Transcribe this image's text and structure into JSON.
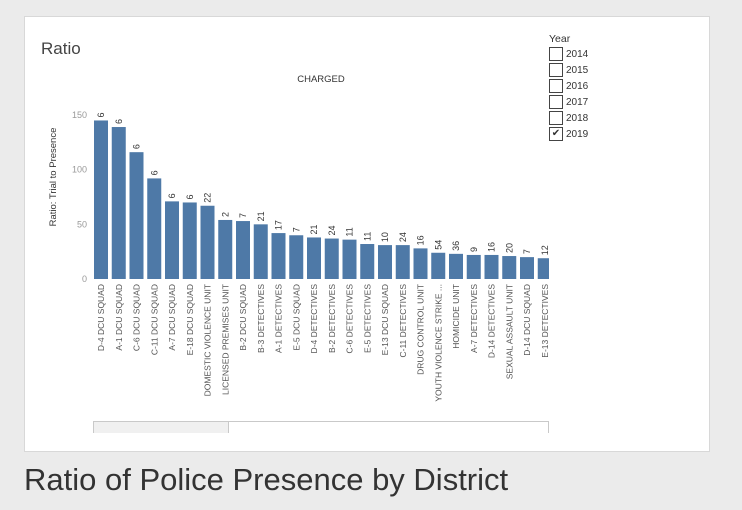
{
  "panel_title": "Ratio",
  "caption": "Ratio of Police Presence by District",
  "colors": {
    "bar": "#4e79a7",
    "axis_text": "#999999",
    "label_text": "#555555"
  },
  "legend": {
    "title": "Year",
    "items": [
      {
        "label": "2014",
        "checked": false
      },
      {
        "label": "2015",
        "checked": false
      },
      {
        "label": "2016",
        "checked": false
      },
      {
        "label": "2017",
        "checked": false
      },
      {
        "label": "2018",
        "checked": false
      },
      {
        "label": "2019",
        "checked": true
      }
    ]
  },
  "chart_data": {
    "type": "bar",
    "title": "CHARGED",
    "ylabel": "Ratio: Trial to Presence",
    "xlabel": "",
    "ylim": [
      0,
      150
    ],
    "yticks": [
      0,
      50,
      100,
      150
    ],
    "grid": false,
    "categories": [
      "D-4  DCU SQUAD",
      "A-1  DCU SQUAD",
      "C-6  DCU SQUAD",
      "C-11 DCU SQUAD",
      "A-7  DCU SQUAD",
      "E-18 DCU SQUAD",
      "DOMESTIC VIOLENCE UNIT",
      "LICENSED PREMISES UNIT",
      "B-2  DCU SQUAD",
      "B-3  DETECTIVES",
      "A-1  DETECTIVES",
      "E-5  DCU SQUAD",
      "D-4  DETECTIVES",
      "B-2  DETECTIVES",
      "C-6  DETECTIVES",
      "E-5  DETECTIVES",
      "E-13 DCU SQUAD",
      "C-11 DETECTIVES",
      "DRUG CONTROL UNIT",
      "YOUTH VIOLENCE STRIKE ...",
      "HOMICIDE UNIT",
      "A-7  DETECTIVES",
      "D-14 DETECTIVES",
      "SEXUAL ASSAULT UNIT",
      "D-14 DCU SQUAD",
      "E-13 DETECTIVES"
    ],
    "values": [
      145,
      139,
      116,
      92,
      71,
      70,
      67,
      54,
      53,
      50,
      42,
      40,
      38,
      37,
      36,
      32,
      31,
      31,
      28,
      24,
      23,
      22,
      22,
      21,
      20,
      19
    ],
    "data_labels": [
      "6",
      "6",
      "6",
      "6",
      "6",
      "6",
      "22",
      "2",
      "7",
      "21",
      "17",
      "7",
      "21",
      "24",
      "11",
      "11",
      "10",
      "24",
      "16",
      "54",
      "36",
      "9",
      "16",
      "20",
      "7",
      "12"
    ]
  }
}
